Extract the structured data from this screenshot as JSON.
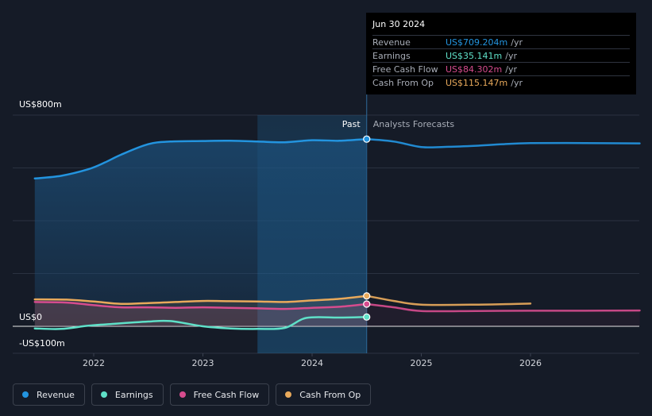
{
  "chart_data": {
    "type": "line",
    "y_unit": "US$ millions",
    "ylim": [
      -100,
      800
    ],
    "y_labels": [
      {
        "value": 800,
        "text": "US$800m"
      },
      {
        "value": 0,
        "text": "US$0"
      },
      {
        "value": -100,
        "text": "-US$100m"
      }
    ],
    "x_ticks": [
      {
        "value": 2022,
        "text": "2022"
      },
      {
        "value": 2023,
        "text": "2023"
      },
      {
        "value": 2024,
        "text": "2024"
      },
      {
        "value": 2025,
        "text": "2025"
      },
      {
        "value": 2026,
        "text": "2026"
      }
    ],
    "xlim": [
      2021.23,
      2027.0
    ],
    "past_label": "Past",
    "forecast_label": "Analysts Forecasts",
    "past_end": 2024.5,
    "highlight_start": 2023.5,
    "series": [
      {
        "name": "Revenue",
        "color": "#2394df",
        "fill": true,
        "points": [
          [
            2021.46,
            560
          ],
          [
            2021.7,
            570
          ],
          [
            2021.95,
            595
          ],
          [
            2022.1,
            620
          ],
          [
            2022.25,
            650
          ],
          [
            2022.5,
            690
          ],
          [
            2022.7,
            700
          ],
          [
            2023.0,
            702
          ],
          [
            2023.25,
            703
          ],
          [
            2023.5,
            700
          ],
          [
            2023.75,
            697
          ],
          [
            2024.0,
            705
          ],
          [
            2024.25,
            703
          ],
          [
            2024.5,
            709.204
          ]
        ],
        "forecast": [
          [
            2024.5,
            709.204
          ],
          [
            2024.75,
            700
          ],
          [
            2025.0,
            679
          ],
          [
            2025.25,
            680
          ],
          [
            2025.5,
            684
          ],
          [
            2025.75,
            690
          ],
          [
            2026.0,
            694
          ],
          [
            2026.5,
            694
          ],
          [
            2027.0,
            693
          ]
        ]
      },
      {
        "name": "Earnings",
        "color": "#5fe0c8",
        "fill": false,
        "points": [
          [
            2021.46,
            -8
          ],
          [
            2021.7,
            -10
          ],
          [
            2021.95,
            2
          ],
          [
            2022.2,
            10
          ],
          [
            2022.5,
            18
          ],
          [
            2022.7,
            20
          ],
          [
            2023.0,
            0
          ],
          [
            2023.25,
            -8
          ],
          [
            2023.5,
            -10
          ],
          [
            2023.75,
            -6
          ],
          [
            2023.95,
            32
          ],
          [
            2024.25,
            33
          ],
          [
            2024.5,
            35.141
          ]
        ],
        "forecast": []
      },
      {
        "name": "Free Cash Flow",
        "color": "#d64c8e",
        "fill": true,
        "points": [
          [
            2021.46,
            92
          ],
          [
            2021.75,
            90
          ],
          [
            2022.0,
            80
          ],
          [
            2022.25,
            72
          ],
          [
            2022.5,
            72
          ],
          [
            2022.75,
            70
          ],
          [
            2023.0,
            72
          ],
          [
            2023.25,
            70
          ],
          [
            2023.5,
            68
          ],
          [
            2023.75,
            66
          ],
          [
            2024.0,
            70
          ],
          [
            2024.25,
            74
          ],
          [
            2024.5,
            84.302
          ]
        ],
        "forecast": [
          [
            2024.5,
            84.302
          ],
          [
            2024.75,
            72
          ],
          [
            2025.0,
            58
          ],
          [
            2025.5,
            58
          ],
          [
            2026.0,
            59
          ],
          [
            2026.5,
            59
          ],
          [
            2027.0,
            60
          ]
        ]
      },
      {
        "name": "Cash From Op",
        "color": "#e8a95b",
        "fill": true,
        "points": [
          [
            2021.46,
            102
          ],
          [
            2021.75,
            101
          ],
          [
            2022.0,
            94
          ],
          [
            2022.25,
            85
          ],
          [
            2022.5,
            88
          ],
          [
            2022.75,
            92
          ],
          [
            2023.0,
            96
          ],
          [
            2023.25,
            95
          ],
          [
            2023.5,
            94
          ],
          [
            2023.75,
            92
          ],
          [
            2024.0,
            98
          ],
          [
            2024.25,
            104
          ],
          [
            2024.5,
            115.147
          ]
        ],
        "forecast": [
          [
            2024.5,
            115.147
          ],
          [
            2024.75,
            96
          ],
          [
            2025.0,
            82
          ],
          [
            2025.5,
            82
          ],
          [
            2026.0,
            86
          ]
        ]
      }
    ]
  },
  "tooltip": {
    "date": "Jun 30 2024",
    "rows": [
      {
        "label": "Revenue",
        "value": "US$709.204m",
        "unit": "/yr",
        "color": "#2394df"
      },
      {
        "label": "Earnings",
        "value": "US$35.141m",
        "unit": "/yr",
        "color": "#5fe0c8"
      },
      {
        "label": "Free Cash Flow",
        "value": "US$84.302m",
        "unit": "/yr",
        "color": "#d64c8e"
      },
      {
        "label": "Cash From Op",
        "value": "US$115.147m",
        "unit": "/yr",
        "color": "#e8a95b"
      }
    ]
  },
  "legend": [
    {
      "label": "Revenue",
      "color": "#2394df"
    },
    {
      "label": "Earnings",
      "color": "#5fe0c8"
    },
    {
      "label": "Free Cash Flow",
      "color": "#d64c8e"
    },
    {
      "label": "Cash From Op",
      "color": "#e8a95b"
    }
  ]
}
